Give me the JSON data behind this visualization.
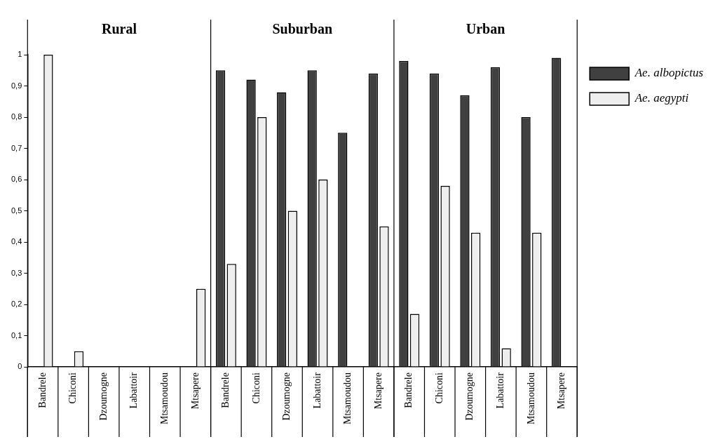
{
  "chart_data": {
    "type": "bar",
    "categories": [
      "Bandrele",
      "Chiconi",
      "Dzoumogne",
      "Labattoir",
      "Mtsamoudou",
      "Mtsapere",
      "Bandrele",
      "Chiconi",
      "Dzoumogne",
      "Labattoir",
      "Mtsamoudou",
      "Mtsapere",
      "Bandrele",
      "Chiconi",
      "Dzoumogne",
      "Labattoir",
      "Mtsamoudou",
      "Mtsapere"
    ],
    "series": [
      {
        "name": "Ae. albopictus",
        "color": "#404040",
        "values": [
          0,
          0,
          0,
          0,
          0,
          0,
          0.95,
          0.92,
          0.88,
          0.95,
          0.75,
          0.94,
          0.98,
          0.94,
          0.87,
          0.96,
          0.8,
          0.99
        ]
      },
      {
        "name": "Ae. aegypti",
        "color": "#eeeeee",
        "values": [
          1,
          0.05,
          0,
          0,
          0,
          0.25,
          0.33,
          0.8,
          0.5,
          0.6,
          0,
          0.45,
          0.17,
          0.58,
          0.43,
          0.06,
          0.43,
          0
        ]
      }
    ],
    "ylim": [
      0,
      1
    ],
    "yticks": [
      0,
      {
        "value": 0.1,
        "label": "0,1"
      },
      {
        "value": 0.2,
        "label": "0,2"
      },
      {
        "value": 0.3,
        "label": "0,3"
      },
      {
        "value": 0.4,
        "label": "0,4"
      },
      {
        "value": 0.5,
        "label": "0,5"
      },
      {
        "value": 0.6,
        "label": "0,6"
      },
      {
        "value": 0.7,
        "label": "0,7"
      },
      {
        "value": 0.8,
        "label": "0,8"
      },
      {
        "value": 0.9,
        "label": "0,9"
      },
      1
    ],
    "annotations": [
      "Rural",
      "Suburban",
      "Urban"
    ],
    "grid": false,
    "legend": "top right"
  }
}
